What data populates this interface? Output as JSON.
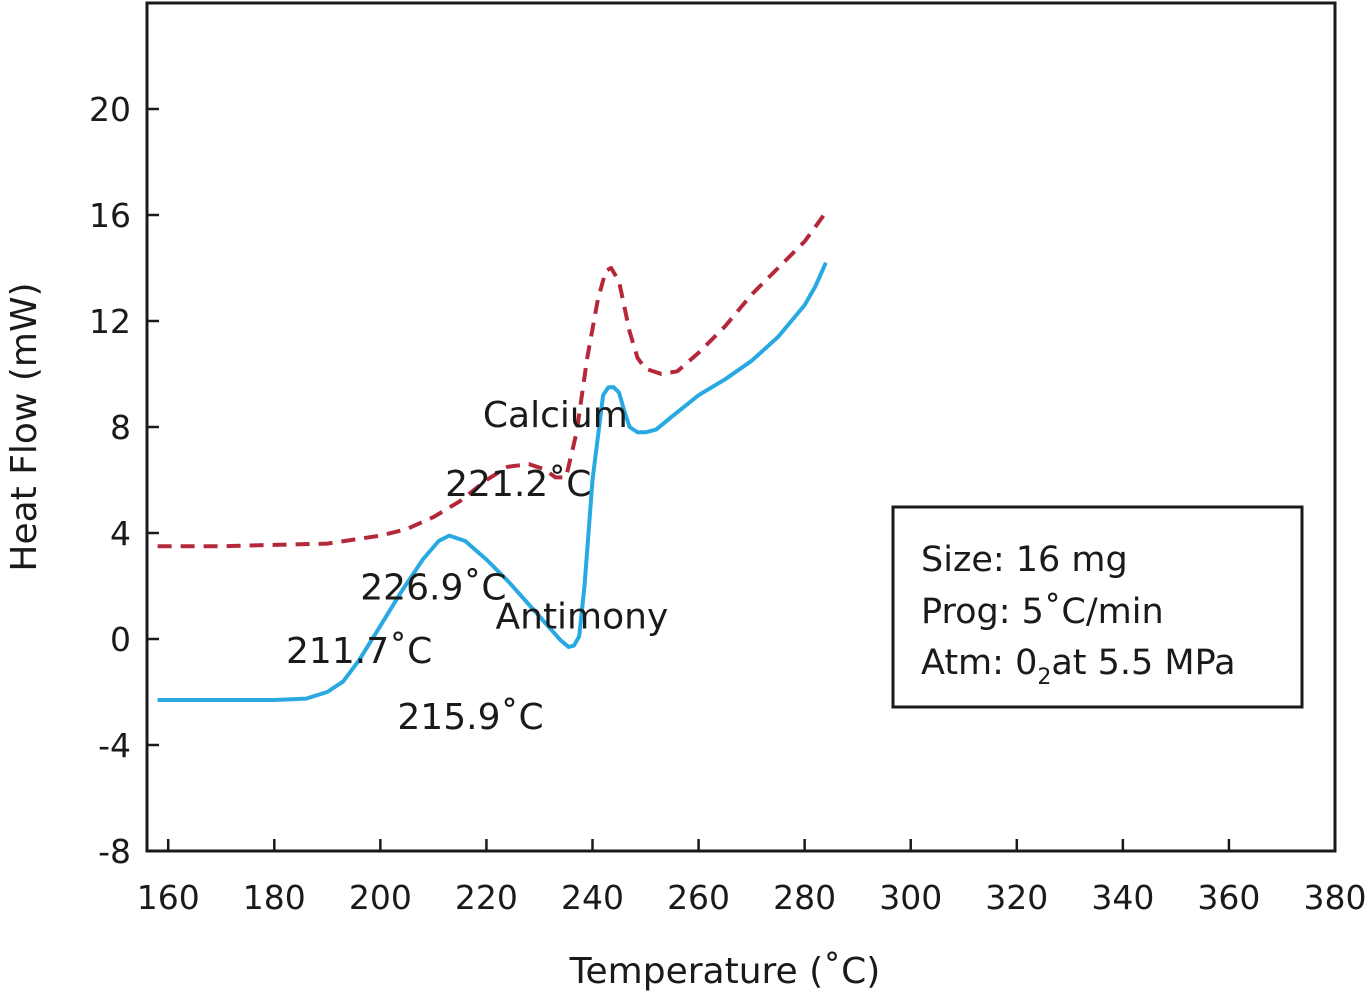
{
  "chart_data": {
    "type": "line",
    "xlabel": "Temperature (˚C)",
    "ylabel": "Heat Flow (mW)",
    "xlim": [
      156,
      380
    ],
    "ylim": [
      -8,
      24
    ],
    "xticks": [
      160,
      180,
      200,
      220,
      240,
      260,
      280,
      300,
      320,
      340,
      360,
      380
    ],
    "yticks": [
      -8,
      -4,
      0,
      4,
      8,
      12,
      16,
      20
    ],
    "grid": false,
    "series": [
      {
        "name": "Calcium",
        "color": "#b5283a",
        "style": "dashed",
        "x": [
          158,
          170,
          180,
          190,
          200,
          205,
          210,
          215,
          220,
          224,
          228,
          231,
          233,
          235,
          237,
          239,
          241,
          242.5,
          243.5,
          245,
          247,
          248.5,
          250,
          253,
          256,
          260,
          265,
          270,
          275,
          280,
          284
        ],
        "y": [
          3.5,
          3.5,
          3.55,
          3.6,
          3.9,
          4.15,
          4.6,
          5.2,
          6.0,
          6.5,
          6.6,
          6.4,
          6.1,
          6.1,
          7.8,
          10.6,
          12.8,
          13.9,
          14.0,
          13.5,
          11.6,
          10.6,
          10.2,
          10.0,
          10.1,
          10.8,
          11.8,
          13.0,
          14.0,
          15.0,
          16.1
        ]
      },
      {
        "name": "Antimony",
        "color": "#29a9e1",
        "style": "solid",
        "x": [
          158,
          170,
          180,
          186,
          190,
          193,
          196,
          200,
          204,
          208,
          211,
          213,
          216,
          220,
          224,
          228,
          232,
          234,
          235.5,
          236.5,
          237.5,
          238.5,
          240,
          242,
          243,
          244,
          245,
          246,
          247,
          248.5,
          250,
          252,
          255,
          260,
          265,
          270,
          275,
          280,
          282,
          284
        ],
        "y": [
          -2.3,
          -2.3,
          -2.3,
          -2.25,
          -2.0,
          -1.6,
          -0.8,
          0.5,
          1.8,
          3.0,
          3.7,
          3.9,
          3.7,
          3.0,
          2.2,
          1.3,
          0.4,
          -0.05,
          -0.3,
          -0.25,
          0.1,
          2.0,
          6.0,
          9.2,
          9.5,
          9.5,
          9.3,
          8.6,
          8.0,
          7.8,
          7.8,
          7.9,
          8.4,
          9.2,
          9.8,
          10.5,
          11.4,
          12.6,
          13.3,
          14.2
        ]
      }
    ],
    "annotations": [
      {
        "text": "Calcium",
        "x": 233,
        "y": 8
      },
      {
        "text": "221.2˚C",
        "x": 226,
        "y": 5.4
      },
      {
        "text": "226.9˚C",
        "x": 210,
        "y": 1.5
      },
      {
        "text": "211.7˚C",
        "x": 196,
        "y": -0.9
      },
      {
        "text": "215.9˚C",
        "x": 217,
        "y": -3.4
      },
      {
        "text": "Antimony",
        "x": 238,
        "y": 0.4
      }
    ],
    "info_box": {
      "lines": [
        {
          "text": "Size: 16 mg"
        },
        {
          "text": "Prog: 5˚C/min"
        },
        {
          "prefix": "Atm: 0",
          "sub": "2",
          "suffix": "at 5.5 MPa"
        }
      ]
    }
  }
}
